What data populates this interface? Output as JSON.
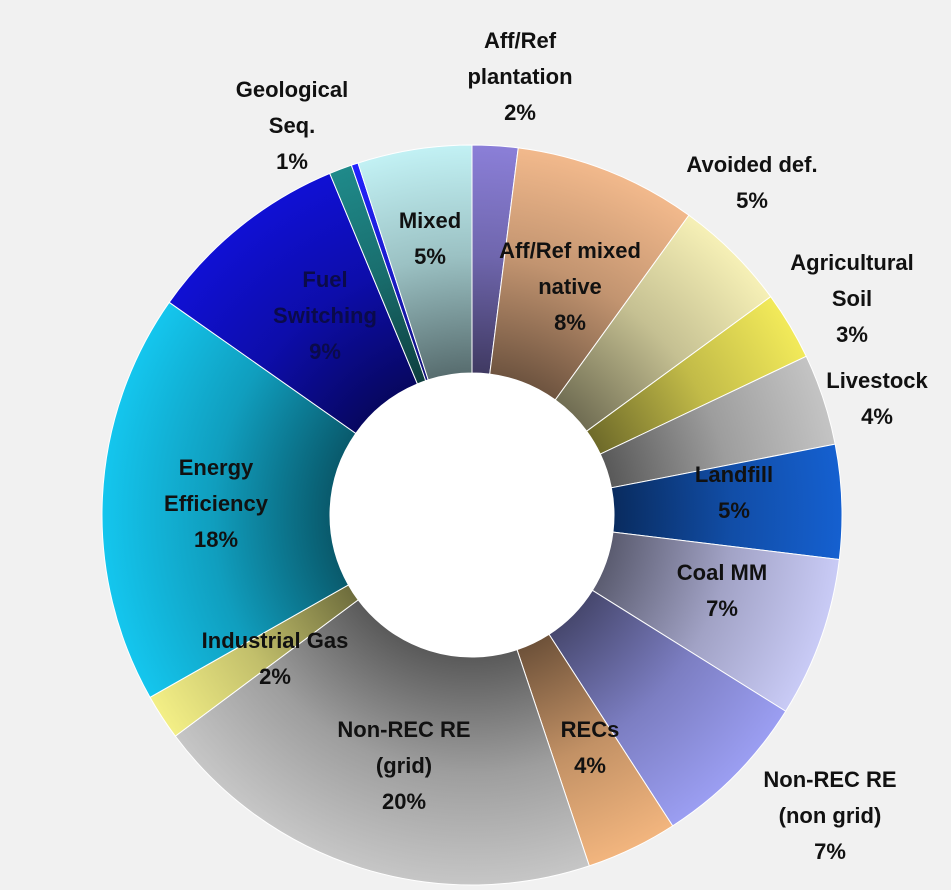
{
  "chart_data": {
    "type": "pie",
    "variant": "donut",
    "start": "top",
    "direction": "clockwise",
    "legend": "none",
    "slices": [
      {
        "name": "Aff/Ref plantation",
        "lines": [
          "Aff/Ref",
          "plantation"
        ],
        "value": 2,
        "pct_label": "2%",
        "color": "#8b7fd8",
        "label_color": "#111111"
      },
      {
        "name": "Aff/Ref mixed native",
        "lines": [
          "Aff/Ref mixed",
          "native"
        ],
        "value": 8,
        "pct_label": "8%",
        "color": "#f2b98c",
        "label_color": "#111111"
      },
      {
        "name": "Avoided def.",
        "lines": [
          "Avoided def."
        ],
        "value": 5,
        "pct_label": "5%",
        "color": "#f6f0b6",
        "label_color": "#111111"
      },
      {
        "name": "Agricultural Soil",
        "lines": [
          "Agricultural",
          "Soil"
        ],
        "value": 3,
        "pct_label": "3%",
        "color": "#f2ea5a",
        "label_color": "#111111"
      },
      {
        "name": "Livestock",
        "lines": [
          "Livestock"
        ],
        "value": 4,
        "pct_label": "4%",
        "color": "#c4c4c4",
        "label_color": "#111111"
      },
      {
        "name": "Landfill",
        "lines": [
          "Landfill"
        ],
        "value": 5,
        "pct_label": "5%",
        "color": "#1560d0",
        "label_color": "#111111"
      },
      {
        "name": "Coal MM",
        "lines": [
          "Coal MM"
        ],
        "value": 7,
        "pct_label": "7%",
        "color": "#c9cbf6",
        "label_color": "#111111"
      },
      {
        "name": "Non-REC RE (non grid)",
        "lines": [
          "Non-REC RE",
          "(non grid)"
        ],
        "value": 7,
        "pct_label": "7%",
        "color": "#9b9ef2",
        "label_color": "#111111"
      },
      {
        "name": "RECs",
        "lines": [
          "RECs"
        ],
        "value": 4,
        "pct_label": "4%",
        "color": "#f2b57e",
        "label_color": "#111111"
      },
      {
        "name": "Non-REC RE (grid)",
        "lines": [
          "Non-REC RE",
          "(grid)"
        ],
        "value": 20,
        "pct_label": "20%",
        "color": "#c6c6c6",
        "label_color": "#111111"
      },
      {
        "name": "Industrial Gas",
        "lines": [
          "Industrial Gas"
        ],
        "value": 2,
        "pct_label": "2%",
        "color": "#f3ef86",
        "label_color": "#111111"
      },
      {
        "name": "Energy Efficiency",
        "lines": [
          "Energy",
          "Efficiency"
        ],
        "value": 18,
        "pct_label": "18%",
        "color": "#14c6ee",
        "label_color": "#111111"
      },
      {
        "name": "Fuel Switching",
        "lines": [
          "Fuel",
          "Switching"
        ],
        "value": 9,
        "pct_label": "9%",
        "color": "#1010d4",
        "label_color": "#0b0b4a"
      },
      {
        "name": "Geological Seq.",
        "lines": [
          "Geological",
          "Seq."
        ],
        "value": 1,
        "pct_label": "1%",
        "color": "#1f8a8a",
        "label_color": "#111111"
      },
      {
        "name": "",
        "lines": [],
        "value": 0.3,
        "pct_label": "",
        "color": "#2222ff",
        "label_color": "#111111"
      },
      {
        "name": "Mixed",
        "lines": [
          "Mixed"
        ],
        "value": 5,
        "pct_label": "5%",
        "color": "#c2f1f4",
        "label_color": "#111111"
      }
    ]
  }
}
